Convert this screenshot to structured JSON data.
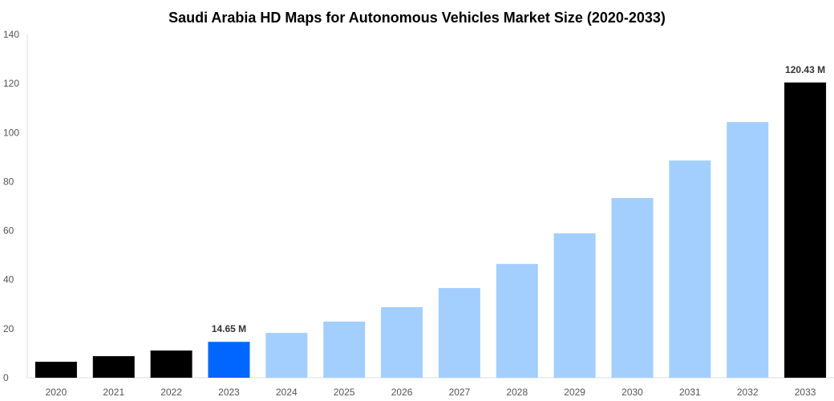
{
  "chart_data": {
    "type": "bar",
    "title": "Saudi Arabia HD Maps for Autonomous Vehicles Market Size (2020-2033)",
    "xlabel": "",
    "ylabel": "",
    "ylim": [
      0,
      140
    ],
    "yticks": [
      0,
      20,
      40,
      60,
      80,
      100,
      120,
      140
    ],
    "grid": false,
    "categories": [
      "2020",
      "2021",
      "2022",
      "2023",
      "2024",
      "2025",
      "2026",
      "2027",
      "2028",
      "2029",
      "2030",
      "2031",
      "2032",
      "2033"
    ],
    "values": [
      6.5,
      8.8,
      11.1,
      14.65,
      18.3,
      22.9,
      28.8,
      36.6,
      46.4,
      58.9,
      73.3,
      88.6,
      104.3,
      120.43
    ],
    "bar_colors": [
      "#000000",
      "#000000",
      "#000000",
      "#0066ff",
      "#a3cfff",
      "#a3cfff",
      "#a3cfff",
      "#a3cfff",
      "#a3cfff",
      "#a3cfff",
      "#a3cfff",
      "#a3cfff",
      "#a3cfff",
      "#000000"
    ],
    "data_labels": [
      {
        "category": "2023",
        "text": "14.65 M"
      },
      {
        "category": "2033",
        "text": "120.43 M"
      }
    ]
  }
}
